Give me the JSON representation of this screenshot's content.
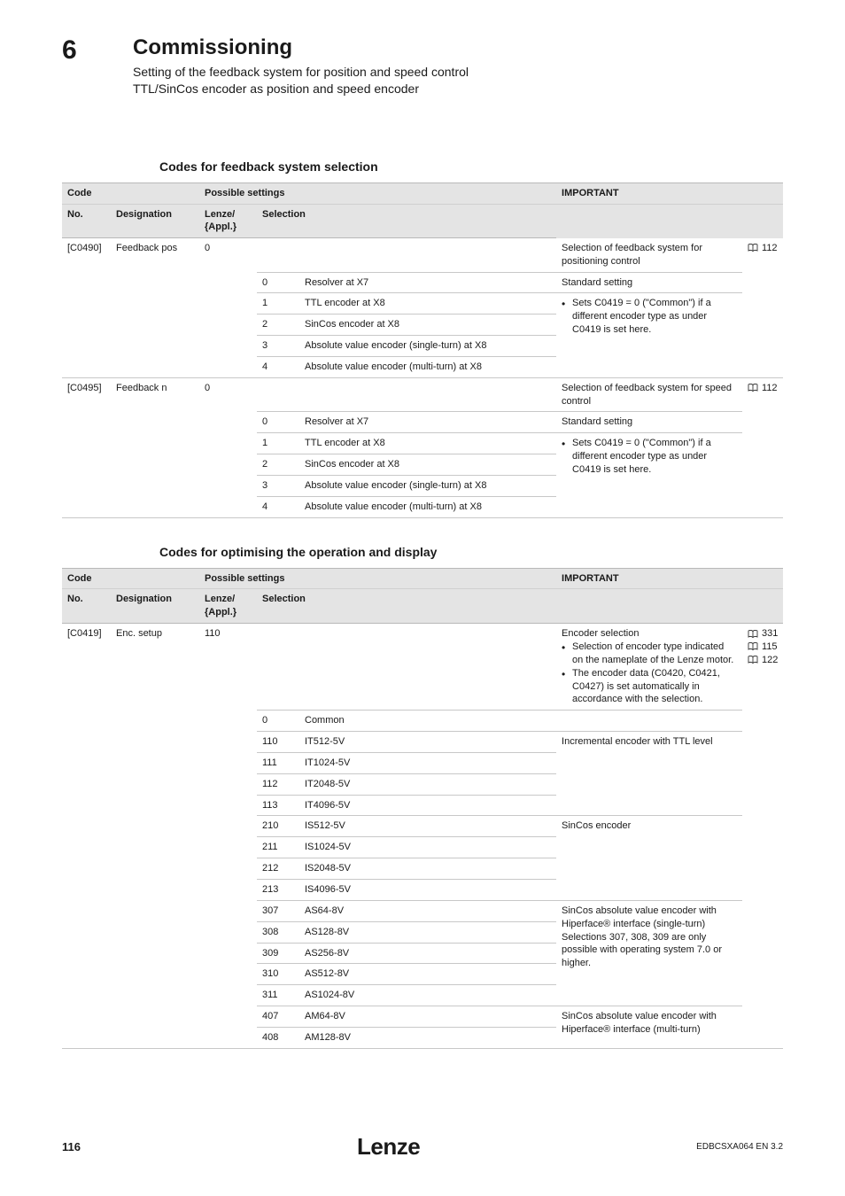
{
  "header": {
    "chapter_number": "6",
    "title": "Commissioning",
    "subtitle1": "Setting of the feedback system for position and speed control",
    "subtitle2": "TTL/SinCos encoder as position and speed encoder"
  },
  "section1": {
    "heading": "Codes for feedback system selection",
    "col_headers": {
      "code": "Code",
      "possible": "Possible settings",
      "important": "IMPORTANT",
      "no": "No.",
      "designation": "Designation",
      "lenze": "Lenze/\n{Appl.}",
      "selection": "Selection"
    },
    "rows": [
      {
        "no": "[C0490]",
        "designation": "Feedback pos",
        "lenze": "0",
        "summary": "Selection of feedback system for positioning control",
        "ref": "112",
        "options": [
          {
            "val": "0",
            "label": "Resolver at X7",
            "note": "Standard setting"
          },
          {
            "val": "1",
            "label": "TTL encoder at X8",
            "note_bullets": [
              "Sets C0419 = 0 (\"Common\") if a different encoder type as under C0419 is set here."
            ]
          },
          {
            "val": "2",
            "label": "SinCos encoder at X8"
          },
          {
            "val": "3",
            "label": "Absolute value encoder (single-turn) at X8"
          },
          {
            "val": "4",
            "label": "Absolute value encoder (multi-turn) at X8"
          }
        ]
      },
      {
        "no": "[C0495]",
        "designation": "Feedback n",
        "lenze": "0",
        "summary": "Selection of feedback system for speed control",
        "ref": "112",
        "options": [
          {
            "val": "0",
            "label": "Resolver at X7",
            "note": "Standard setting"
          },
          {
            "val": "1",
            "label": "TTL encoder at X8",
            "note_bullets": [
              "Sets C0419 = 0 (\"Common\") if a different encoder type as under C0419 is set here."
            ]
          },
          {
            "val": "2",
            "label": "SinCos encoder at X8"
          },
          {
            "val": "3",
            "label": "Absolute value encoder (single-turn) at X8"
          },
          {
            "val": "4",
            "label": "Absolute value encoder (multi-turn) at X8"
          }
        ]
      }
    ]
  },
  "section2": {
    "heading": "Codes for optimising the operation and display",
    "col_headers": {
      "code": "Code",
      "possible": "Possible settings",
      "important": "IMPORTANT",
      "no": "No.",
      "designation": "Designation",
      "lenze": "Lenze/\n{Appl.}",
      "selection": "Selection"
    },
    "row": {
      "no": "[C0419]",
      "designation": "Enc. setup",
      "lenze": "110",
      "summary_heading": "Encoder selection",
      "summary_bullets": [
        "Selection of encoder type indicated on the nameplate of the Lenze motor.",
        "The encoder data (C0420, C0421, C0427) is set automatically in accordance with the selection."
      ],
      "refs": [
        "331",
        "115",
        "122"
      ],
      "groups": [
        {
          "note": "",
          "options": [
            {
              "val": "0",
              "label": "Common"
            }
          ]
        },
        {
          "note": "Incremental encoder with TTL level",
          "options": [
            {
              "val": "110",
              "label": "IT512-5V"
            },
            {
              "val": "111",
              "label": "IT1024-5V"
            },
            {
              "val": "112",
              "label": "IT2048-5V"
            },
            {
              "val": "113",
              "label": "IT4096-5V"
            }
          ]
        },
        {
          "note": "SinCos encoder",
          "options": [
            {
              "val": "210",
              "label": "IS512-5V"
            },
            {
              "val": "211",
              "label": "IS1024-5V"
            },
            {
              "val": "212",
              "label": "IS2048-5V"
            },
            {
              "val": "213",
              "label": "IS4096-5V"
            }
          ]
        },
        {
          "note": "SinCos absolute value encoder with Hiperface® interface (single-turn)\nSelections 307, 308, 309 are only possible with operating system 7.0 or higher.",
          "options": [
            {
              "val": "307",
              "label": "AS64-8V"
            },
            {
              "val": "308",
              "label": "AS128-8V"
            },
            {
              "val": "309",
              "label": "AS256-8V"
            },
            {
              "val": "310",
              "label": "AS512-8V"
            },
            {
              "val": "311",
              "label": "AS1024-8V"
            }
          ]
        },
        {
          "note": "SinCos absolute value encoder with Hiperface® interface (multi-turn)",
          "options": [
            {
              "val": "407",
              "label": "AM64-8V"
            },
            {
              "val": "408",
              "label": "AM128-8V"
            }
          ]
        }
      ]
    }
  },
  "footer": {
    "page": "116",
    "brand": "Lenze",
    "docid": "EDBCSXA064 EN 3.2"
  },
  "colors": {
    "header_bg": "#e4e4e4",
    "border": "#c8c8c8",
    "text": "#1a1a1a"
  }
}
